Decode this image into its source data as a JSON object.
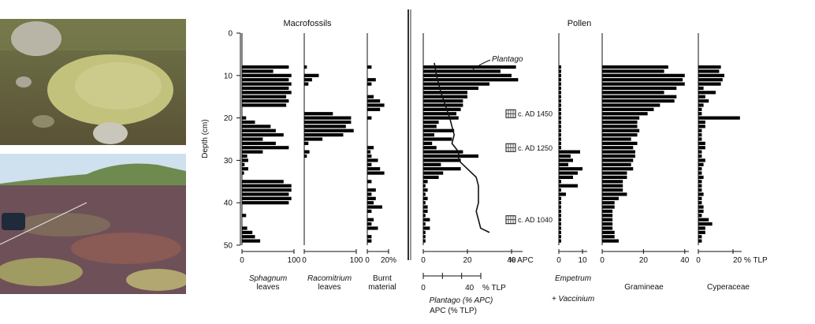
{
  "photos": {
    "top": {
      "description_icon": "moss-hummock-photo"
    },
    "bottom": {
      "description_icon": "heath-moorland-photo"
    }
  },
  "headers": {
    "macrofossils": "Macrofossils",
    "pollen": "Pollen"
  },
  "depth_axis": {
    "label": "Depth (cm)",
    "ticks": [
      "0",
      "10",
      "20",
      "30",
      "40",
      "50"
    ],
    "range": [
      0,
      50
    ]
  },
  "panels": {
    "sphagnum": {
      "label_line1": "Sphagnum",
      "label_line2": "leaves",
      "ticks": [
        "0",
        "100"
      ],
      "xlim": [
        0,
        100
      ]
    },
    "racomitrium": {
      "label_line1": "Racomitrium",
      "label_line2": "leaves",
      "ticks": [
        "0",
        "100"
      ],
      "xlim": [
        0,
        100
      ]
    },
    "burnt": {
      "label_line1": "Burnt",
      "label_line2": "material",
      "ticks": [
        "0",
        "20%"
      ],
      "xlim": [
        0,
        20
      ]
    },
    "apc": {
      "ticks": [
        "0",
        "20",
        "40"
      ],
      "unit": "% APC",
      "xlim": [
        0,
        45
      ],
      "tlp_ticks": [
        "0",
        "40"
      ],
      "tlp_unit": "% TLP",
      "label_line1": "Plantago (% APC)",
      "label_line2": "APC (% TLP)",
      "curve_label": "Plantago"
    },
    "empetrum": {
      "label_line1": "Empetrum",
      "label_line2": "+ Vaccinium",
      "ticks": [
        "0",
        "10"
      ],
      "xlim": [
        0,
        12
      ]
    },
    "gramineae": {
      "label": "Gramineae",
      "ticks": [
        "0",
        "20",
        "40"
      ],
      "xlim": [
        0,
        42
      ]
    },
    "cyperaceae": {
      "label": "Cyperaceae",
      "ticks": [
        "0",
        "20 % TLP"
      ],
      "xlim": [
        0,
        25
      ]
    }
  },
  "dates": [
    {
      "label": "c. AD 1450",
      "depth": 19
    },
    {
      "label": "c. AD 1250",
      "depth": 27
    },
    {
      "label": "c. AD 1040",
      "depth": 44
    }
  ],
  "chart_data": [
    {
      "type": "bar",
      "title": "Sphagnum leaves",
      "x": [
        8,
        9,
        10,
        11,
        12,
        13,
        14,
        15,
        16,
        17,
        20,
        21,
        22,
        23,
        24,
        25,
        26,
        27,
        28,
        29,
        30,
        31,
        32,
        33,
        35,
        36,
        37,
        38,
        39,
        40,
        43,
        46,
        47,
        48,
        49
      ],
      "values": [
        90,
        60,
        95,
        90,
        95,
        90,
        95,
        85,
        90,
        85,
        8,
        25,
        55,
        65,
        80,
        40,
        65,
        90,
        40,
        10,
        12,
        5,
        12,
        4,
        80,
        95,
        95,
        90,
        95,
        90,
        8,
        10,
        20,
        25,
        35
      ]
    },
    {
      "type": "bar",
      "title": "Racomitrium leaves",
      "x": [
        8,
        10,
        11,
        12,
        19,
        20,
        21,
        22,
        23,
        24,
        25,
        26,
        28,
        29
      ],
      "values": [
        5,
        28,
        15,
        8,
        55,
        90,
        90,
        80,
        95,
        75,
        35,
        8,
        10,
        5
      ]
    },
    {
      "type": "bar",
      "title": "Burnt material",
      "x": [
        8,
        11,
        12,
        15,
        16,
        17,
        18,
        20,
        27,
        28,
        29,
        30,
        31,
        32,
        33,
        35,
        37,
        38,
        39,
        40,
        41,
        42,
        44,
        45,
        46,
        48,
        49
      ],
      "values": [
        4,
        8,
        4,
        6,
        12,
        16,
        12,
        4,
        6,
        3,
        4,
        10,
        4,
        12,
        16,
        4,
        8,
        4,
        8,
        6,
        14,
        4,
        6,
        4,
        10,
        4,
        4
      ]
    },
    {
      "type": "bar",
      "title": "APC",
      "x": [
        8,
        9,
        10,
        11,
        12,
        13,
        14,
        15,
        16,
        17,
        18,
        19,
        20,
        21,
        22,
        23,
        24,
        25,
        26,
        27,
        28,
        29,
        30,
        31,
        32,
        33,
        34,
        35,
        36,
        37,
        38,
        39,
        40,
        41,
        42,
        43,
        44,
        45,
        46,
        47,
        48,
        49
      ],
      "values": [
        42,
        35,
        40,
        43,
        30,
        25,
        20,
        20,
        18,
        18,
        17,
        15,
        16,
        7,
        6,
        14,
        5,
        13,
        4,
        6,
        18,
        25,
        17,
        8,
        17,
        9,
        7,
        2,
        1,
        2,
        1,
        2,
        1,
        2,
        2,
        1,
        3,
        1,
        3,
        1,
        1,
        1
      ]
    },
    {
      "type": "line",
      "title": "Plantago (% APC)",
      "x": [
        7,
        10,
        14,
        17,
        20,
        22,
        24,
        26,
        28,
        30,
        32,
        34,
        36,
        38,
        40,
        42,
        44,
        46,
        47
      ],
      "values": [
        5,
        6,
        8,
        10,
        12,
        13,
        14,
        13,
        16,
        16,
        20,
        24,
        25,
        25,
        25,
        24,
        25,
        26,
        30
      ]
    },
    {
      "type": "bar",
      "title": "Empetrum + Vaccinium",
      "x": [
        8,
        9,
        10,
        11,
        12,
        13,
        14,
        15,
        16,
        17,
        18,
        19,
        20,
        21,
        22,
        23,
        24,
        25,
        26,
        27,
        28,
        29,
        30,
        31,
        32,
        33,
        34,
        35,
        36,
        37,
        38,
        39,
        40,
        41,
        42,
        43,
        44,
        45,
        46,
        47,
        48,
        49
      ],
      "values": [
        1,
        1,
        1,
        1,
        1,
        1,
        1,
        1,
        1,
        1,
        1,
        1,
        1,
        1,
        1,
        1,
        1,
        1,
        1,
        1,
        9,
        5,
        6,
        4,
        10,
        8,
        6,
        1,
        8,
        1,
        3,
        1,
        1,
        1,
        1,
        1,
        1,
        1,
        1,
        1,
        1,
        1
      ]
    },
    {
      "type": "bar",
      "title": "Gramineae",
      "x": [
        8,
        9,
        10,
        11,
        12,
        13,
        14,
        15,
        16,
        17,
        18,
        19,
        20,
        21,
        22,
        23,
        24,
        25,
        26,
        27,
        28,
        29,
        30,
        31,
        32,
        33,
        34,
        35,
        36,
        37,
        38,
        39,
        40,
        41,
        42,
        43,
        44,
        45,
        46,
        47,
        48,
        49
      ],
      "values": [
        32,
        30,
        40,
        39,
        40,
        36,
        30,
        36,
        35,
        28,
        25,
        22,
        18,
        17,
        17,
        18,
        17,
        14,
        17,
        15,
        16,
        16,
        15,
        14,
        15,
        12,
        12,
        10,
        10,
        10,
        12,
        8,
        6,
        6,
        5,
        5,
        5,
        5,
        5,
        6,
        6,
        8
      ]
    },
    {
      "type": "bar",
      "title": "Cyperaceae",
      "x": [
        8,
        9,
        10,
        11,
        12,
        13,
        14,
        15,
        16,
        17,
        18,
        19,
        20,
        21,
        22,
        23,
        24,
        25,
        26,
        27,
        28,
        29,
        30,
        31,
        32,
        33,
        34,
        35,
        36,
        37,
        38,
        39,
        40,
        41,
        42,
        43,
        44,
        45,
        46,
        47,
        48,
        49
      ],
      "values": [
        13,
        12,
        15,
        14,
        13,
        3,
        10,
        4,
        6,
        3,
        2,
        2,
        24,
        4,
        4,
        2,
        2,
        2,
        4,
        4,
        2,
        2,
        4,
        3,
        2,
        2,
        3,
        2,
        2,
        2,
        3,
        2,
        2,
        3,
        3,
        2,
        6,
        8,
        4,
        4,
        2,
        2
      ]
    }
  ]
}
